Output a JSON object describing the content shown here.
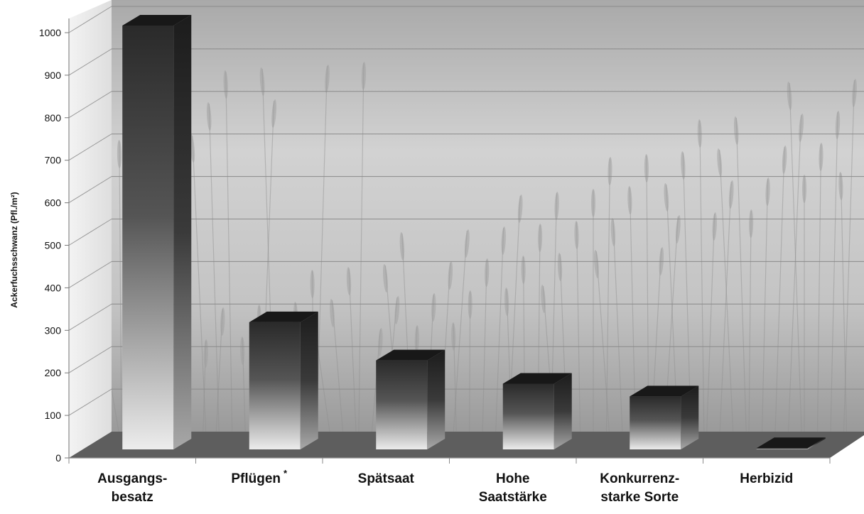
{
  "chart_data": {
    "type": "bar",
    "title": "",
    "xlabel": "",
    "ylabel": "Ackerfuchsschwanz  (Pfl./m²)",
    "ylim": [
      0,
      1000
    ],
    "yticks": [
      0,
      100,
      200,
      300,
      400,
      500,
      600,
      700,
      800,
      900,
      1000
    ],
    "grid": true,
    "legend": "none",
    "categories": [
      {
        "lines": [
          "Ausgangs-",
          "besatz"
        ],
        "sup": ""
      },
      {
        "lines": [
          "Pflügen"
        ],
        "sup": "*"
      },
      {
        "lines": [
          "Spätsaat"
        ],
        "sup": ""
      },
      {
        "lines": [
          "Hohe",
          "Saatstärke"
        ],
        "sup": ""
      },
      {
        "lines": [
          "Konkurrenz-",
          "starke Sorte"
        ],
        "sup": ""
      },
      {
        "lines": [
          "Herbizid"
        ],
        "sup": ""
      }
    ],
    "values": [
      1000,
      300,
      210,
      155,
      125,
      3
    ],
    "colors": {
      "bar_dark": "#2b2b2b",
      "bar_light": "#e6e6e6",
      "floor": "#5e5e5e",
      "background": "#bdbdbd"
    }
  }
}
